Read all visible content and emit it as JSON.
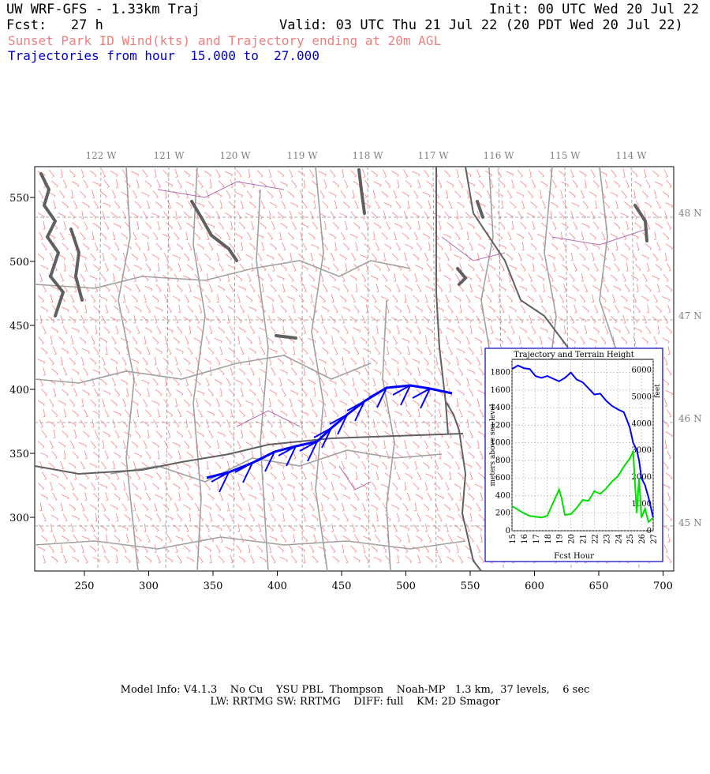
{
  "header": {
    "model_title": "UW WRF-GFS - 1.33km Traj",
    "init": "Init: 00 UTC Wed 20 Jul 22",
    "fcst": "Fcst:   27 h",
    "valid": "Valid: 03 UTC Thu 21 Jul 22 (20 PDT Wed 20 Jul 22)",
    "subtitle": "Sunset Park ID Wind(kts) and Trajectory ending at 20m AGL",
    "traj_range": "Trajectories from hour  15.000 to  27.000"
  },
  "map": {
    "lon_labels": [
      "122 W",
      "121 W",
      "120 W",
      "119 W",
      "118 W",
      "117 W",
      "116 W",
      "115 W",
      "114 W"
    ],
    "lat_labels": [
      "48 N",
      "47 N",
      "46 N",
      "45 N"
    ],
    "x_ticks": [
      "250",
      "300",
      "350",
      "400",
      "450",
      "500",
      "550",
      "600",
      "650",
      "700"
    ],
    "y_ticks": [
      "550",
      "500",
      "450",
      "400",
      "350",
      "300"
    ],
    "colors": {
      "barbs": "#ff8080",
      "trajectory": "#0000ff",
      "borders": "#a0a0a0",
      "state_lines": "#606060",
      "water": "#606060",
      "counties": "#b070b0"
    }
  },
  "inset": {
    "title": "Trajectory and Terrain Height",
    "xlabel": "Fcst Hour",
    "ylabel_left": "meters above sea level",
    "ylabel_right": "feet",
    "x_ticks": [
      "15",
      "16",
      "17",
      "18",
      "19",
      "20",
      "21",
      "22",
      "23",
      "24",
      "25",
      "26",
      "27"
    ],
    "y_ticks_left": [
      "0",
      "200",
      "400",
      "600",
      "800",
      "1000",
      "1200",
      "1400",
      "1600",
      "1800"
    ],
    "y_ticks_right": [
      "0",
      "1000",
      "2000",
      "3000",
      "4000",
      "5000",
      "6000"
    ]
  },
  "chart_data": {
    "type": "line",
    "title": "Trajectory and Terrain Height",
    "xlabel": "Fcst Hour",
    "ylabel": "meters above sea level",
    "xlim": [
      15,
      27
    ],
    "ylim": [
      0,
      1950
    ],
    "grid": true,
    "series": [
      {
        "color": "#0000ff",
        "x": [
          15,
          15.5,
          16,
          16.5,
          17,
          17.5,
          18,
          18.5,
          19,
          19.5,
          20,
          20.5,
          21,
          21.5,
          22,
          22.5,
          23,
          23.5,
          24,
          24.5,
          25,
          25.3,
          25.6,
          25.8,
          26,
          26.3,
          26.6,
          27
        ],
        "values": [
          1840,
          1880,
          1850,
          1840,
          1760,
          1740,
          1760,
          1730,
          1700,
          1740,
          1800,
          1720,
          1690,
          1620,
          1550,
          1560,
          1480,
          1420,
          1380,
          1350,
          1180,
          1000,
          920,
          800,
          600,
          520,
          380,
          150
        ]
      },
      {
        "color": "#00e000",
        "x": [
          15,
          15.5,
          16,
          16.5,
          17,
          17.5,
          18,
          18.5,
          19,
          19.2,
          19.5,
          20,
          20.5,
          21,
          21.5,
          22,
          22.5,
          23,
          23.5,
          24,
          24.5,
          25,
          25.3,
          25.6,
          25.8,
          26,
          26.3,
          26.6,
          27
        ],
        "values": [
          280,
          240,
          200,
          170,
          160,
          150,
          170,
          320,
          470,
          380,
          180,
          190,
          260,
          350,
          340,
          450,
          420,
          480,
          560,
          620,
          730,
          820,
          900,
          200,
          600,
          150,
          250,
          100,
          150
        ]
      }
    ]
  },
  "footer": {
    "line1": "Model Info: V4.1.3    No Cu    YSU PBL  Thompson    Noah-MP   1.3 km,  37 levels,    6 sec",
    "line2": "LW: RRTMG SW: RRTMG    DIFF: full    KM: 2D Smagor"
  }
}
